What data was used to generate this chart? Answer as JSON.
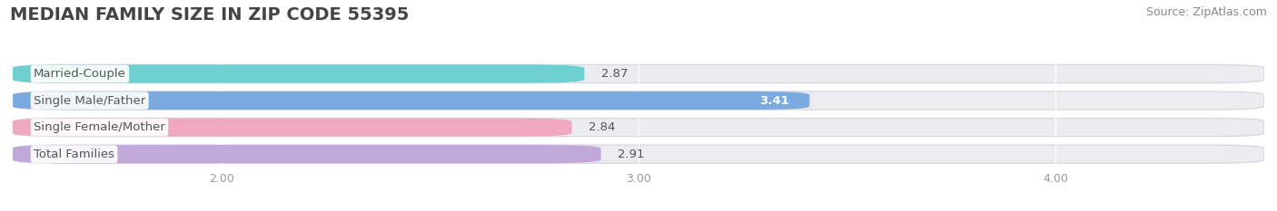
{
  "title": "MEDIAN FAMILY SIZE IN ZIP CODE 55395",
  "source": "Source: ZipAtlas.com",
  "categories": [
    "Married-Couple",
    "Single Male/Father",
    "Single Female/Mother",
    "Total Families"
  ],
  "values": [
    2.87,
    3.41,
    2.84,
    2.91
  ],
  "bar_colors": [
    "#6dcfcf",
    "#7aaae0",
    "#f0a8c0",
    "#c0a8d8"
  ],
  "value_inside": [
    false,
    true,
    false,
    false
  ],
  "xlim": [
    1.5,
    4.5
  ],
  "xstart": 1.5,
  "xticks": [
    2.0,
    3.0,
    4.0
  ],
  "xtick_labels": [
    "2.00",
    "3.00",
    "4.00"
  ],
  "bar_height": 0.68,
  "background_color": "#ffffff",
  "bar_bg_color": "#ebebf0",
  "title_fontsize": 14,
  "source_fontsize": 9,
  "label_fontsize": 9.5,
  "value_fontsize": 9.5,
  "title_color": "#444444",
  "source_color": "#888888",
  "label_text_color": "#555555",
  "value_text_color_outside": "#555555",
  "value_text_color_inside": "#ffffff"
}
